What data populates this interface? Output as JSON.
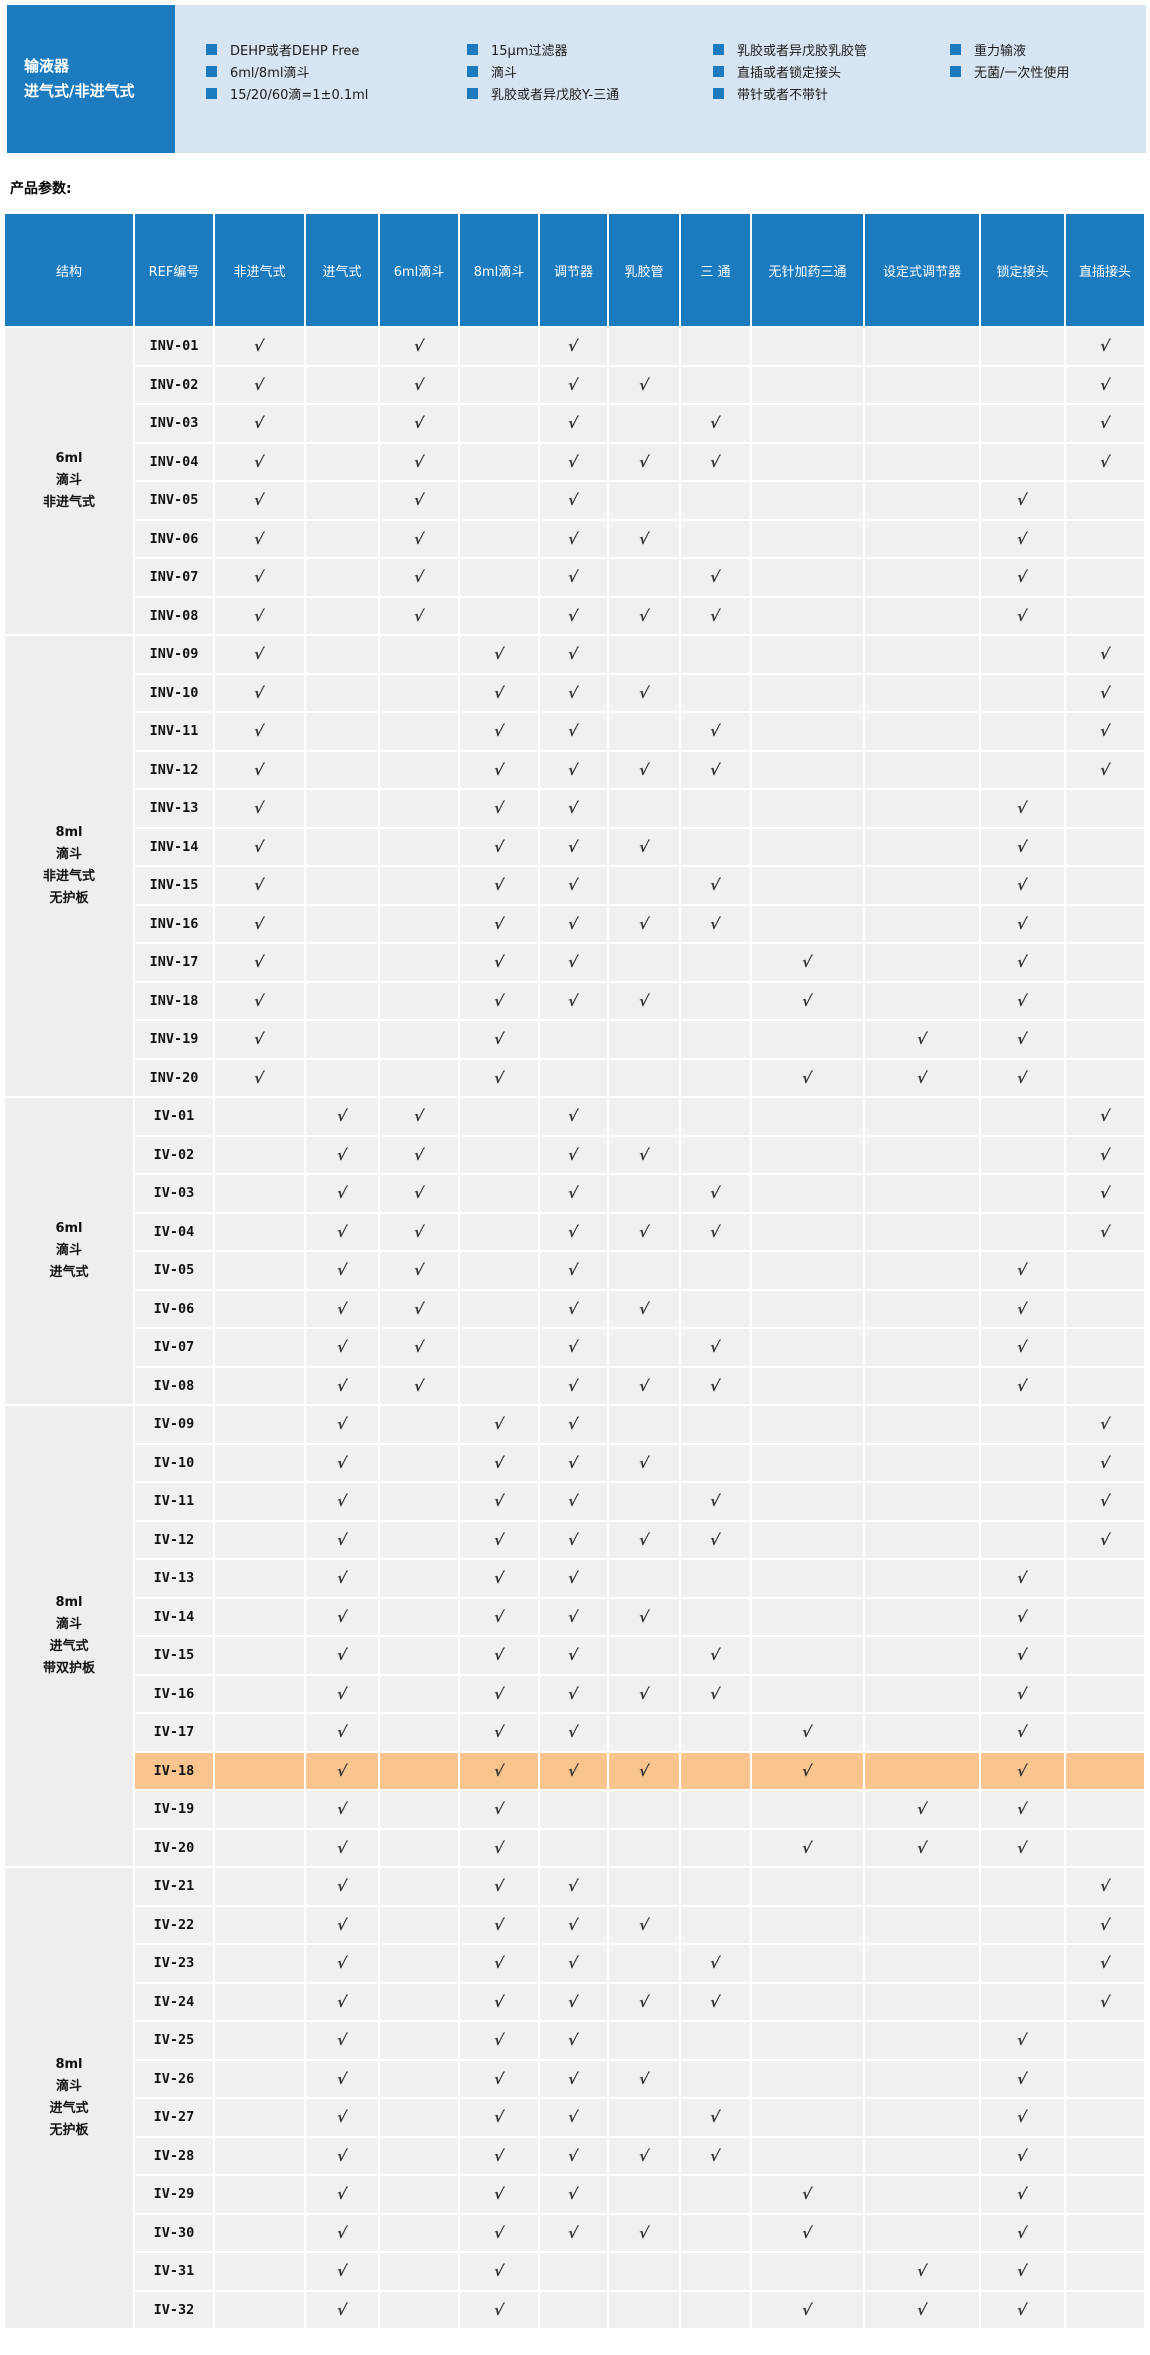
{
  "colors": {
    "accent_blue": "#1c7bbf",
    "panel_light_blue": "#d6e5f1",
    "cell_gray": "#f0f0f0",
    "highlight_orange": "#f9c48e",
    "check_dark": "#333333"
  },
  "header": {
    "title_line1": "输液器",
    "title_line2": "进气式/非进气式",
    "bullet_columns": [
      {
        "items": [
          "DEHP或者DEHP Free",
          "6ml/8ml滴斗",
          "15/20/60滴=1±0.1ml"
        ]
      },
      {
        "items": [
          "15μm过滤器",
          "滴斗",
          "乳胶或者异戊胶Y-三通"
        ]
      },
      {
        "items": [
          "乳胶或者异戊胶乳胶管",
          "直插或者锁定接头",
          "带针或者不带针"
        ]
      },
      {
        "items": [
          "重力输液",
          "无菌/一次性使用"
        ]
      }
    ]
  },
  "section_label": "产品参数:",
  "table": {
    "check_glyph": "√",
    "highlighted_ref": "IV-18",
    "columns": [
      {
        "id": "structure",
        "label": "结构"
      },
      {
        "id": "ref",
        "label": "REF编号"
      },
      {
        "id": "non_vented",
        "label": "非进气式"
      },
      {
        "id": "vented",
        "label": "进气式"
      },
      {
        "id": "drip6",
        "label": "6ml滴斗"
      },
      {
        "id": "drip8",
        "label": "8ml滴斗"
      },
      {
        "id": "regulator",
        "label": "调节器"
      },
      {
        "id": "latex_tube",
        "label": "乳胶管"
      },
      {
        "id": "three_way",
        "label": "三 通"
      },
      {
        "id": "needle_free_tee",
        "label": "无针加药三通"
      },
      {
        "id": "preset_regulator",
        "label": "设定式调节器"
      },
      {
        "id": "lock_connector",
        "label": "锁定接头"
      },
      {
        "id": "spike_connector",
        "label": "直插接头"
      }
    ],
    "groups": [
      {
        "label_lines": [
          "6ml",
          "滴斗",
          "非进气式"
        ],
        "rows": [
          {
            "ref": "INV-01",
            "checks": [
              "non_vented",
              "drip6",
              "regulator",
              "spike_connector"
            ]
          },
          {
            "ref": "INV-02",
            "checks": [
              "non_vented",
              "drip6",
              "regulator",
              "latex_tube",
              "spike_connector"
            ]
          },
          {
            "ref": "INV-03",
            "checks": [
              "non_vented",
              "drip6",
              "regulator",
              "three_way",
              "spike_connector"
            ]
          },
          {
            "ref": "INV-04",
            "checks": [
              "non_vented",
              "drip6",
              "regulator",
              "latex_tube",
              "three_way",
              "spike_connector"
            ]
          },
          {
            "ref": "INV-05",
            "checks": [
              "non_vented",
              "drip6",
              "regulator",
              "lock_connector"
            ]
          },
          {
            "ref": "INV-06",
            "checks": [
              "non_vented",
              "drip6",
              "regulator",
              "latex_tube",
              "lock_connector"
            ]
          },
          {
            "ref": "INV-07",
            "checks": [
              "non_vented",
              "drip6",
              "regulator",
              "three_way",
              "lock_connector"
            ]
          },
          {
            "ref": "INV-08",
            "checks": [
              "non_vented",
              "drip6",
              "regulator",
              "latex_tube",
              "three_way",
              "lock_connector"
            ]
          }
        ]
      },
      {
        "label_lines": [
          "8ml",
          "滴斗",
          "非进气式",
          "无护板"
        ],
        "rows": [
          {
            "ref": "INV-09",
            "checks": [
              "non_vented",
              "drip8",
              "regulator",
              "spike_connector"
            ]
          },
          {
            "ref": "INV-10",
            "checks": [
              "non_vented",
              "drip8",
              "regulator",
              "latex_tube",
              "spike_connector"
            ]
          },
          {
            "ref": "INV-11",
            "checks": [
              "non_vented",
              "drip8",
              "regulator",
              "three_way",
              "spike_connector"
            ]
          },
          {
            "ref": "INV-12",
            "checks": [
              "non_vented",
              "drip8",
              "regulator",
              "latex_tube",
              "three_way",
              "spike_connector"
            ]
          },
          {
            "ref": "INV-13",
            "checks": [
              "non_vented",
              "drip8",
              "regulator",
              "lock_connector"
            ]
          },
          {
            "ref": "INV-14",
            "checks": [
              "non_vented",
              "drip8",
              "regulator",
              "latex_tube",
              "lock_connector"
            ]
          },
          {
            "ref": "INV-15",
            "checks": [
              "non_vented",
              "drip8",
              "regulator",
              "three_way",
              "lock_connector"
            ]
          },
          {
            "ref": "INV-16",
            "checks": [
              "non_vented",
              "drip8",
              "regulator",
              "latex_tube",
              "three_way",
              "lock_connector"
            ]
          },
          {
            "ref": "INV-17",
            "checks": [
              "non_vented",
              "drip8",
              "regulator",
              "needle_free_tee",
              "lock_connector"
            ]
          },
          {
            "ref": "INV-18",
            "checks": [
              "non_vented",
              "drip8",
              "regulator",
              "latex_tube",
              "needle_free_tee",
              "lock_connector"
            ]
          },
          {
            "ref": "INV-19",
            "checks": [
              "non_vented",
              "drip8",
              "preset_regulator",
              "lock_connector"
            ]
          },
          {
            "ref": "INV-20",
            "checks": [
              "non_vented",
              "drip8",
              "needle_free_tee",
              "preset_regulator",
              "lock_connector"
            ]
          }
        ]
      },
      {
        "label_lines": [
          "6ml",
          "滴斗",
          "进气式"
        ],
        "rows": [
          {
            "ref": "IV-01",
            "checks": [
              "vented",
              "drip6",
              "regulator",
              "spike_connector"
            ]
          },
          {
            "ref": "IV-02",
            "checks": [
              "vented",
              "drip6",
              "regulator",
              "latex_tube",
              "spike_connector"
            ]
          },
          {
            "ref": "IV-03",
            "checks": [
              "vented",
              "drip6",
              "regulator",
              "three_way",
              "spike_connector"
            ]
          },
          {
            "ref": "IV-04",
            "checks": [
              "vented",
              "drip6",
              "regulator",
              "latex_tube",
              "three_way",
              "spike_connector"
            ]
          },
          {
            "ref": "IV-05",
            "checks": [
              "vented",
              "drip6",
              "regulator",
              "lock_connector"
            ]
          },
          {
            "ref": "IV-06",
            "checks": [
              "vented",
              "drip6",
              "regulator",
              "latex_tube",
              "lock_connector"
            ]
          },
          {
            "ref": "IV-07",
            "checks": [
              "vented",
              "drip6",
              "regulator",
              "three_way",
              "lock_connector"
            ]
          },
          {
            "ref": "IV-08",
            "checks": [
              "vented",
              "drip6",
              "regulator",
              "latex_tube",
              "three_way",
              "lock_connector"
            ]
          }
        ]
      },
      {
        "label_lines": [
          "8ml",
          "滴斗",
          "进气式",
          "带双护板"
        ],
        "rows": [
          {
            "ref": "IV-09",
            "checks": [
              "vented",
              "drip8",
              "regulator",
              "spike_connector"
            ]
          },
          {
            "ref": "IV-10",
            "checks": [
              "vented",
              "drip8",
              "regulator",
              "latex_tube",
              "spike_connector"
            ]
          },
          {
            "ref": "IV-11",
            "checks": [
              "vented",
              "drip8",
              "regulator",
              "three_way",
              "spike_connector"
            ]
          },
          {
            "ref": "IV-12",
            "checks": [
              "vented",
              "drip8",
              "regulator",
              "latex_tube",
              "three_way",
              "spike_connector"
            ]
          },
          {
            "ref": "IV-13",
            "checks": [
              "vented",
              "drip8",
              "regulator",
              "lock_connector"
            ]
          },
          {
            "ref": "IV-14",
            "checks": [
              "vented",
              "drip8",
              "regulator",
              "latex_tube",
              "lock_connector"
            ]
          },
          {
            "ref": "IV-15",
            "checks": [
              "vented",
              "drip8",
              "regulator",
              "three_way",
              "lock_connector"
            ]
          },
          {
            "ref": "IV-16",
            "checks": [
              "vented",
              "drip8",
              "regulator",
              "latex_tube",
              "three_way",
              "lock_connector"
            ]
          },
          {
            "ref": "IV-17",
            "checks": [
              "vented",
              "drip8",
              "regulator",
              "needle_free_tee",
              "lock_connector"
            ]
          },
          {
            "ref": "IV-18",
            "checks": [
              "vented",
              "drip8",
              "regulator",
              "latex_tube",
              "needle_free_tee",
              "lock_connector"
            ]
          },
          {
            "ref": "IV-19",
            "checks": [
              "vented",
              "drip8",
              "preset_regulator",
              "lock_connector"
            ]
          },
          {
            "ref": "IV-20",
            "checks": [
              "vented",
              "drip8",
              "needle_free_tee",
              "preset_regulator",
              "lock_connector"
            ]
          }
        ]
      },
      {
        "label_lines": [
          "8ml",
          "滴斗",
          "进气式",
          "无护板"
        ],
        "rows": [
          {
            "ref": "IV-21",
            "checks": [
              "vented",
              "drip8",
              "regulator",
              "spike_connector"
            ]
          },
          {
            "ref": "IV-22",
            "checks": [
              "vented",
              "drip8",
              "regulator",
              "latex_tube",
              "spike_connector"
            ]
          },
          {
            "ref": "IV-23",
            "checks": [
              "vented",
              "drip8",
              "regulator",
              "three_way",
              "spike_connector"
            ]
          },
          {
            "ref": "IV-24",
            "checks": [
              "vented",
              "drip8",
              "regulator",
              "latex_tube",
              "three_way",
              "spike_connector"
            ]
          },
          {
            "ref": "IV-25",
            "checks": [
              "vented",
              "drip8",
              "regulator",
              "lock_connector"
            ]
          },
          {
            "ref": "IV-26",
            "checks": [
              "vented",
              "drip8",
              "regulator",
              "latex_tube",
              "lock_connector"
            ]
          },
          {
            "ref": "IV-27",
            "checks": [
              "vented",
              "drip8",
              "regulator",
              "three_way",
              "lock_connector"
            ]
          },
          {
            "ref": "IV-28",
            "checks": [
              "vented",
              "drip8",
              "regulator",
              "latex_tube",
              "three_way",
              "lock_connector"
            ]
          },
          {
            "ref": "IV-29",
            "checks": [
              "vented",
              "drip8",
              "regulator",
              "needle_free_tee",
              "lock_connector"
            ]
          },
          {
            "ref": "IV-30",
            "checks": [
              "vented",
              "drip8",
              "regulator",
              "latex_tube",
              "needle_free_tee",
              "lock_connector"
            ]
          },
          {
            "ref": "IV-31",
            "checks": [
              "vented",
              "drip8",
              "preset_regulator",
              "lock_connector"
            ]
          },
          {
            "ref": "IV-32",
            "checks": [
              "vented",
              "drip8",
              "needle_free_tee",
              "preset_regulator",
              "lock_connector"
            ]
          }
        ]
      }
    ]
  }
}
